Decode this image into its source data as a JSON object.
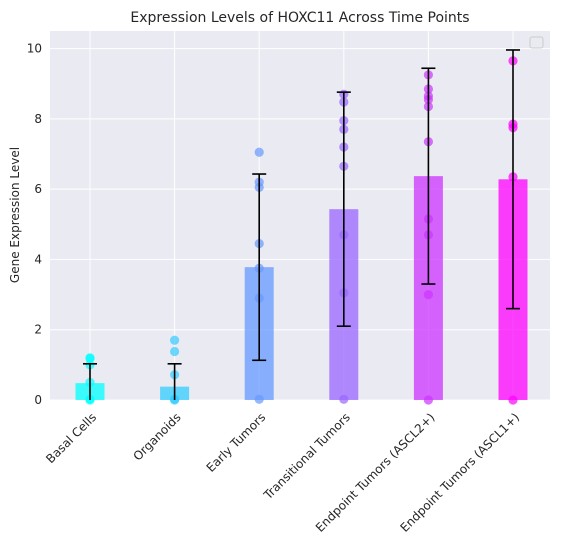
{
  "chart_data": {
    "type": "bar",
    "title": "Expression Levels of HOXC11 Across Time Points",
    "xlabel": "",
    "ylabel": "Gene Expression Level",
    "ylim": [
      0,
      10.5
    ],
    "yticks": [
      0,
      2,
      4,
      6,
      8,
      10
    ],
    "grid": true,
    "legend": "empty box, top-right",
    "categories": [
      "Basal Cells",
      "Organoids",
      "Early Tumors",
      "Transitional Tumors",
      "Endpoint Tumors (ASCL2+)",
      "Endpoint Tumors (ASCL1+)"
    ],
    "values": [
      0.48,
      0.38,
      3.78,
      5.43,
      6.37,
      6.28
    ],
    "errors": [
      0.55,
      0.65,
      2.65,
      3.33,
      3.07,
      3.68
    ],
    "colors": [
      "#00ffff",
      "#33ccff",
      "#6699ff",
      "#9966ff",
      "#cc33ff",
      "#ff00ff"
    ],
    "points": [
      [
        1.2,
        1.18,
        1.0,
        0.5,
        0.02,
        0.0
      ],
      [
        1.7,
        1.38,
        0.72,
        0.02,
        0.0
      ],
      [
        7.05,
        6.2,
        6.05,
        4.45,
        3.75,
        2.9,
        0.02
      ],
      [
        8.7,
        8.48,
        7.95,
        7.7,
        7.2,
        6.65,
        4.7,
        3.05,
        0.02
      ],
      [
        9.25,
        8.85,
        8.65,
        8.55,
        8.35,
        7.35,
        5.15,
        4.7,
        3.0,
        0.0
      ],
      [
        9.65,
        7.85,
        7.75,
        6.35,
        0.0
      ]
    ]
  }
}
